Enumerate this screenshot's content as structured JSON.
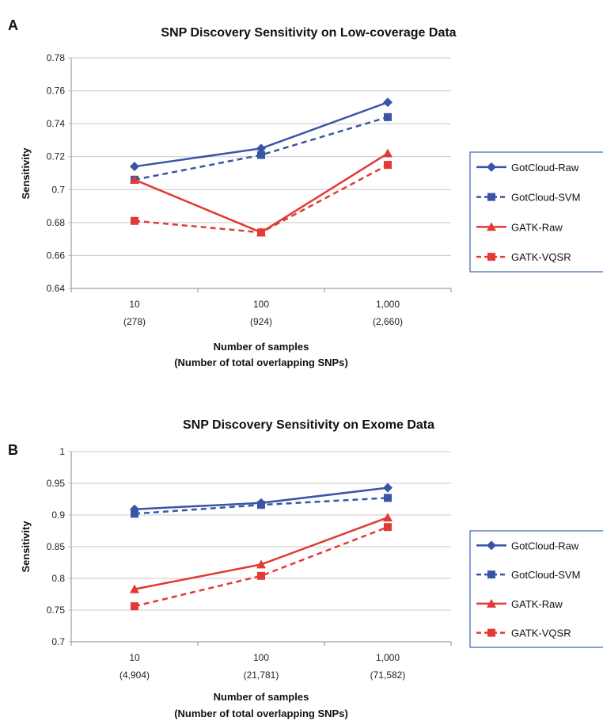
{
  "chart_data": [
    {
      "panel": "A",
      "type": "line",
      "title": "SNP Discovery Sensitivity on Low-coverage Data",
      "ylabel": "Sensitivity",
      "xlabel_line1": "Number of samples",
      "xlabel_line2": "(Number of total overlapping SNPs)",
      "ylim": [
        0.64,
        0.78
      ],
      "yticks": [
        0.64,
        0.66,
        0.68,
        0.7,
        0.72,
        0.74,
        0.76,
        0.78
      ],
      "ytick_labels": [
        "0.64",
        "0.66",
        "0.68",
        "0.7",
        "0.72",
        "0.74",
        "0.76",
        "0.78"
      ],
      "categories": [
        "10",
        "100",
        "1,000"
      ],
      "category_sublabels": [
        "(278)",
        "(924)",
        "(2,660)"
      ],
      "grid": true,
      "legend_position": "right",
      "series": [
        {
          "name": "GotCloud-Raw",
          "values": [
            0.714,
            0.725,
            0.753
          ],
          "color": "#3a55a6",
          "dash": "solid",
          "marker": "diamond"
        },
        {
          "name": "GotCloud-SVM",
          "values": [
            0.706,
            0.721,
            0.744
          ],
          "color": "#3a55a6",
          "dash": "dashed",
          "marker": "square"
        },
        {
          "name": "GATK-Raw",
          "values": [
            0.706,
            0.674,
            0.722
          ],
          "color": "#e23a34",
          "dash": "solid",
          "marker": "triangle"
        },
        {
          "name": "GATK-VQSR",
          "values": [
            0.681,
            0.674,
            0.715
          ],
          "color": "#e23a34",
          "dash": "dashed",
          "marker": "square"
        }
      ]
    },
    {
      "panel": "B",
      "type": "line",
      "title": "SNP Discovery Sensitivity on Exome Data",
      "ylabel": "Sensitivity",
      "xlabel_line1": "Number of samples",
      "xlabel_line2": "(Number of total overlapping SNPs)",
      "ylim": [
        0.7,
        1.0
      ],
      "yticks": [
        0.7,
        0.75,
        0.8,
        0.85,
        0.9,
        0.95,
        1.0
      ],
      "ytick_labels": [
        "0.7",
        "0.75",
        "0.8",
        "0.85",
        "0.9",
        "0.95",
        "1"
      ],
      "categories": [
        "10",
        "100",
        "1,000"
      ],
      "category_sublabels": [
        "(4,904)",
        "(21,781)",
        "(71,582)"
      ],
      "grid": true,
      "legend_position": "right",
      "series": [
        {
          "name": "GotCloud-Raw",
          "values": [
            0.909,
            0.919,
            0.943
          ],
          "color": "#3a55a6",
          "dash": "solid",
          "marker": "diamond"
        },
        {
          "name": "GotCloud-SVM",
          "values": [
            0.902,
            0.916,
            0.927
          ],
          "color": "#3a55a6",
          "dash": "dashed",
          "marker": "square"
        },
        {
          "name": "GATK-Raw",
          "values": [
            0.783,
            0.822,
            0.896
          ],
          "color": "#e23a34",
          "dash": "solid",
          "marker": "triangle"
        },
        {
          "name": "GATK-VQSR",
          "values": [
            0.756,
            0.804,
            0.881
          ],
          "color": "#e23a34",
          "dash": "dashed",
          "marker": "square"
        }
      ]
    }
  ]
}
